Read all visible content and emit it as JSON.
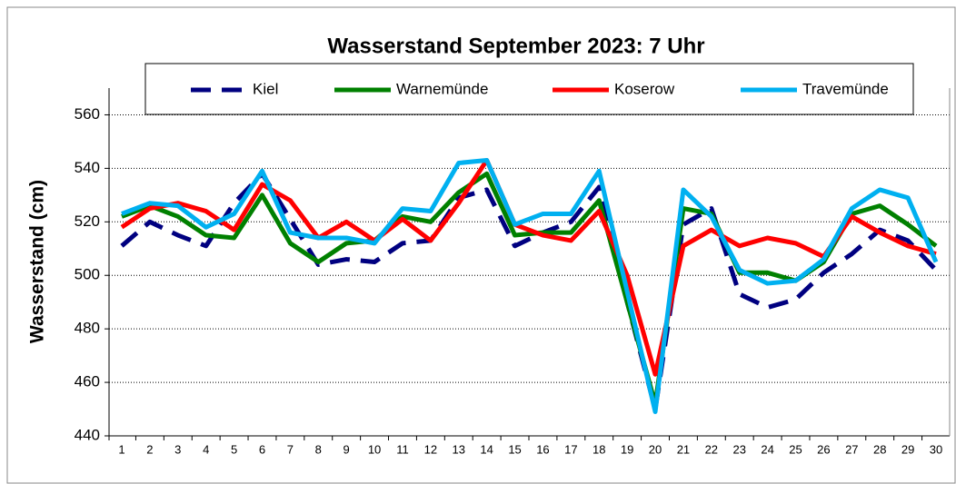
{
  "chart_data": {
    "type": "line",
    "title": "Wasserstand September 2023: 7 Uhr",
    "y_label": "Wasserstand (cm)",
    "categories": [
      "1",
      "2",
      "3",
      "4",
      "5",
      "6",
      "7",
      "8",
      "9",
      "10",
      "11",
      "12",
      "13",
      "14",
      "15",
      "16",
      "17",
      "18",
      "19",
      "20",
      "21",
      "22",
      "23",
      "24",
      "25",
      "26",
      "27",
      "28",
      "29",
      "30"
    ],
    "series": [
      {
        "name": "Kiel",
        "color": "#000080",
        "dashed": true,
        "values": [
          511,
          520,
          515,
          511,
          527,
          538,
          521,
          504,
          506,
          505,
          512,
          513,
          529,
          532,
          511,
          516,
          520,
          533,
          490,
          450,
          519,
          525,
          493,
          488,
          491,
          501,
          508,
          517,
          513,
          502
        ]
      },
      {
        "name": "Warnemünde",
        "color": "#008000",
        "dashed": false,
        "values": [
          522,
          526,
          522,
          515,
          514,
          530,
          512,
          505,
          512,
          513,
          522,
          520,
          531,
          538,
          515,
          516,
          516,
          528,
          490,
          452,
          525,
          523,
          501,
          501,
          498,
          505,
          523,
          526,
          519,
          511
        ]
      },
      {
        "name": "Koserow",
        "color": "#ff0000",
        "dashed": false,
        "values": [
          518,
          525,
          527,
          524,
          517,
          534,
          528,
          514,
          520,
          513,
          521,
          513,
          527,
          543,
          519,
          515,
          513,
          524,
          500,
          463,
          511,
          517,
          511,
          514,
          512,
          507,
          522,
          516,
          511,
          508
        ]
      },
      {
        "name": "Travemünde",
        "color": "#00b0f0",
        "dashed": false,
        "values": [
          523,
          527,
          526,
          518,
          523,
          539,
          516,
          514,
          514,
          512,
          525,
          524,
          542,
          543,
          519,
          523,
          523,
          539,
          494,
          449,
          532,
          522,
          502,
          497,
          498,
          506,
          525,
          532,
          529,
          505
        ]
      }
    ],
    "ylim": [
      440,
      570
    ],
    "yticks": [
      440,
      460,
      480,
      500,
      520,
      540,
      560
    ],
    "grid": true
  }
}
